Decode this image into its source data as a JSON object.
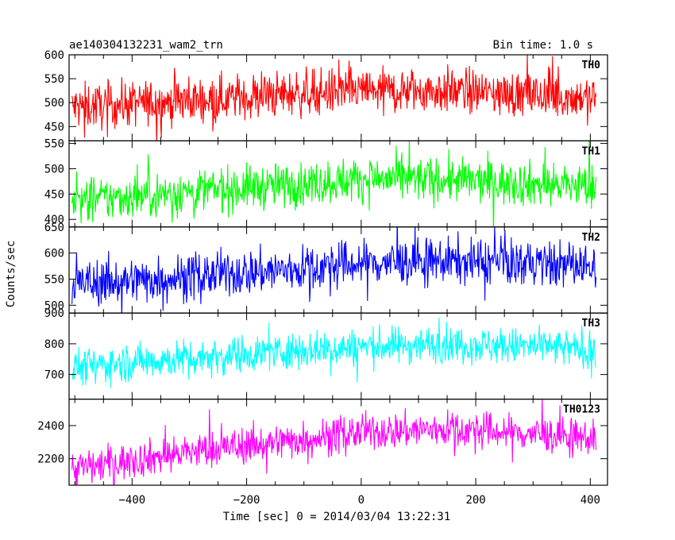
{
  "header": {
    "title": "ae140304132231_wam2_trn",
    "bin_time": "Bin time: 1.0 s"
  },
  "chart_data": {
    "type": "line",
    "xlabel": "Time [sec] 0 = 2014/03/04 13:22:31",
    "ylabel": "Counts/sec",
    "xlim": [
      -510,
      430
    ],
    "xticks": [
      -400,
      -200,
      0,
      200,
      400
    ],
    "x_tick_labels": [
      "−400",
      "−200",
      "0",
      "200",
      "400"
    ],
    "x_range": [
      -505,
      410
    ],
    "grid": false,
    "panels": [
      {
        "name": "TH0",
        "color": "#ff0000",
        "ylim": [
          420,
          600
        ],
        "yticks": [
          450,
          500,
          550,
          600
        ],
        "profile": [
          [
            -505,
            490
          ],
          [
            -300,
            505
          ],
          [
            -100,
            520
          ],
          [
            0,
            525
          ],
          [
            150,
            525
          ],
          [
            300,
            515
          ],
          [
            410,
            510
          ]
        ],
        "noise": 24
      },
      {
        "name": "TH1",
        "color": "#00ff00",
        "ylim": [
          385,
          555
        ],
        "yticks": [
          400,
          450,
          500,
          550
        ],
        "profile": [
          [
            -505,
            435
          ],
          [
            -300,
            455
          ],
          [
            -100,
            470
          ],
          [
            0,
            480
          ],
          [
            150,
            478
          ],
          [
            300,
            470
          ],
          [
            410,
            465
          ]
        ],
        "noise": 22
      },
      {
        "name": "TH2",
        "color": "#0000ff",
        "ylim": [
          485,
          650
        ],
        "yticks": [
          500,
          550,
          600,
          650
        ],
        "profile": [
          [
            -505,
            540
          ],
          [
            -300,
            555
          ],
          [
            -100,
            570
          ],
          [
            0,
            580
          ],
          [
            150,
            585
          ],
          [
            300,
            580
          ],
          [
            410,
            575
          ]
        ],
        "noise": 22
      },
      {
        "name": "TH3",
        "color": "#00ffff",
        "ylim": [
          620,
          900
        ],
        "yticks": [
          700,
          800,
          900
        ],
        "profile": [
          [
            -505,
            725
          ],
          [
            -300,
            755
          ],
          [
            -100,
            780
          ],
          [
            0,
            790
          ],
          [
            150,
            800
          ],
          [
            300,
            790
          ],
          [
            410,
            780
          ]
        ],
        "noise": 30
      },
      {
        "name": "TH0123",
        "color": "#ff00ff",
        "ylim": [
          2040,
          2560
        ],
        "yticks": [
          2200,
          2400
        ],
        "profile": [
          [
            -505,
            2140
          ],
          [
            -300,
            2240
          ],
          [
            -100,
            2320
          ],
          [
            0,
            2360
          ],
          [
            150,
            2380
          ],
          [
            300,
            2350
          ],
          [
            410,
            2320
          ]
        ],
        "noise": 55
      }
    ]
  }
}
